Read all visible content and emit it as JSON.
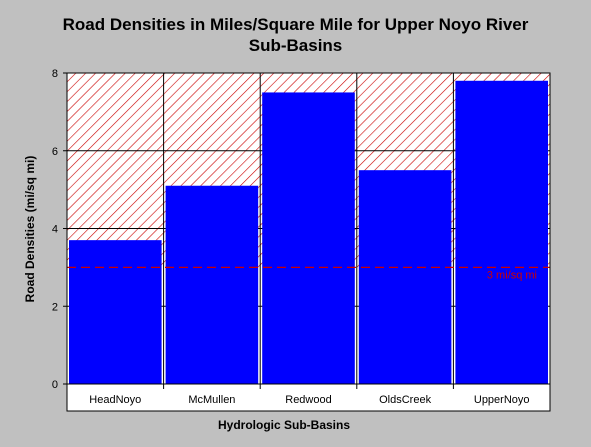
{
  "chart_data": {
    "type": "bar",
    "title_lines": [
      "Road Densities in Miles/Square Mile for Upper Noyo River",
      "Sub-Basins"
    ],
    "xlabel": "Hydrologic Sub-Basins",
    "ylabel": "Road Densities (mi/sq mi)",
    "categories": [
      "HeadNoyo",
      "McMullen",
      "Redwood",
      "OldsCreek",
      "UpperNoyo"
    ],
    "values": [
      3.7,
      5.1,
      7.5,
      5.5,
      7.8
    ],
    "ylim": [
      0,
      8
    ],
    "yticks": [
      "0",
      "2",
      "4",
      "6",
      "8"
    ],
    "grid": true,
    "threshold": {
      "value": 3,
      "label": "3 mi/sq mi"
    },
    "hatched_region": {
      "from": 3,
      "to": 8
    },
    "colors": {
      "bar": "#0000ff",
      "plot_bg": "#ffffff",
      "figure_bg": "#c0c0c0",
      "hatch": "#cc0000",
      "threshold": "#cc0000"
    }
  }
}
